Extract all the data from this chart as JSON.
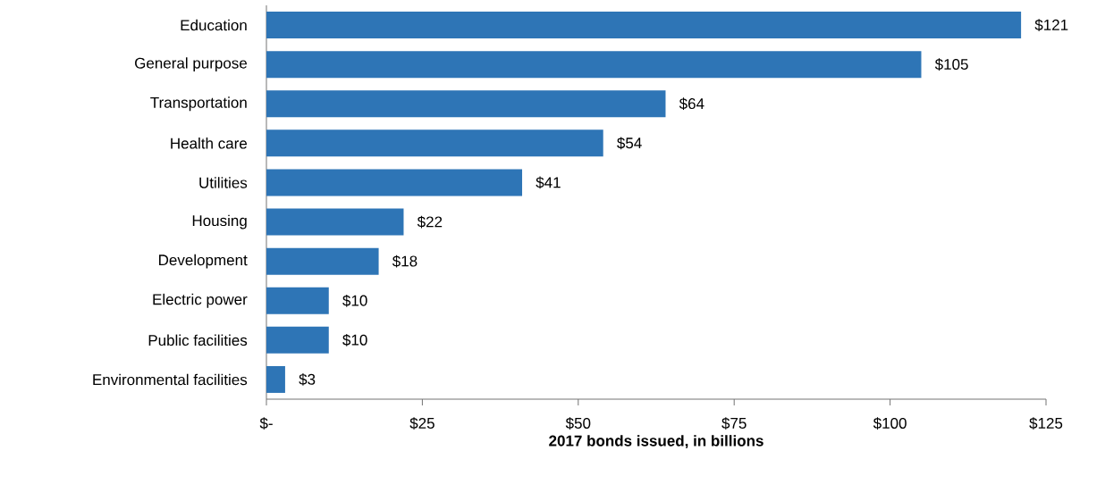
{
  "chart_data": {
    "type": "bar",
    "orientation": "horizontal",
    "categories": [
      "Education",
      "General purpose",
      "Transportation",
      "Health care",
      "Utilities",
      "Housing",
      "Development",
      "Electric power",
      "Public facilities",
      "Environmental facilities"
    ],
    "values": [
      121,
      105,
      64,
      54,
      41,
      22,
      18,
      10,
      10,
      3
    ],
    "value_labels": [
      "$121",
      "$105",
      "$64",
      "$54",
      "$41",
      "$22",
      "$18",
      "$10",
      "$10",
      "$3"
    ],
    "color": "#2e75b6",
    "xlim": [
      0,
      125
    ],
    "xticks": [
      {
        "value": 0,
        "label": "$-"
      },
      {
        "value": 25,
        "label": "$25"
      },
      {
        "value": 50,
        "label": "$50"
      },
      {
        "value": 75,
        "label": "$75"
      },
      {
        "value": 100,
        "label": "$100"
      },
      {
        "value": 125,
        "label": "$125"
      }
    ],
    "xlabel": "2017 bonds issued, in billions"
  }
}
